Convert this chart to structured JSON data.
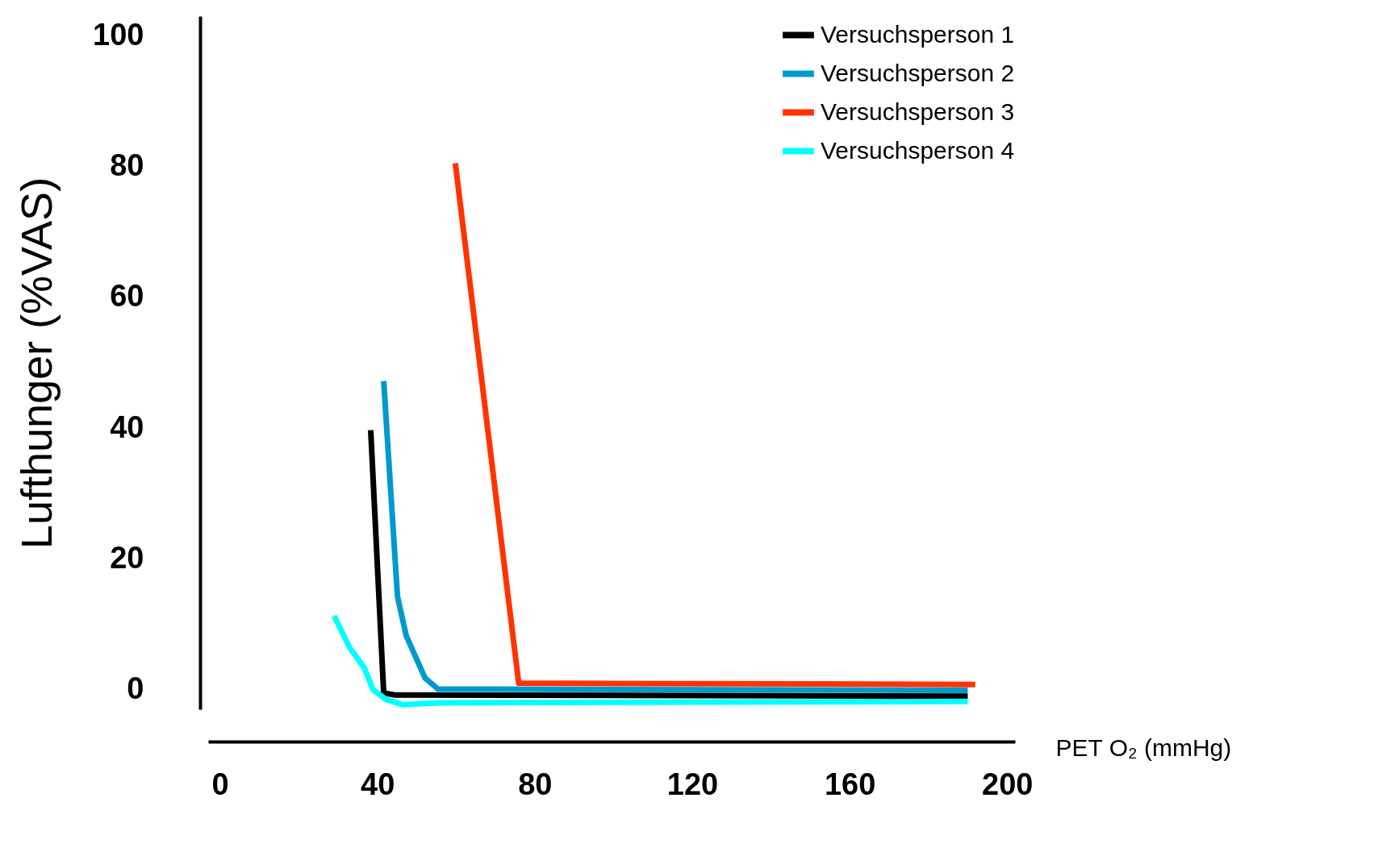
{
  "chart_data": {
    "type": "line",
    "xlabel": "PET O₂ (mmHg)",
    "ylabel": "Lufthunger (%VAS)",
    "xlim": [
      -3,
      202
    ],
    "ylim": [
      -3,
      103
    ],
    "xticks": [
      0,
      40,
      80,
      120,
      160,
      200
    ],
    "yticks": [
      0,
      20,
      40,
      60,
      80,
      100
    ],
    "grid": false,
    "legend": "top right",
    "line_style": "solid",
    "series": [
      {
        "name": "Versuchsperson 1",
        "color": "#000000",
        "x": [
          38.3,
          41.6,
          44.4,
          190
        ],
        "values": [
          39.7,
          -0.5,
          -0.8,
          -1
        ]
      },
      {
        "name": "Versuchsperson 2",
        "color": "#0099cc",
        "x": [
          41.6,
          45.1,
          47.3,
          52.1,
          55.4,
          190
        ],
        "values": [
          47.2,
          14.3,
          8.3,
          1.8,
          0.1,
          -0.1
        ]
      },
      {
        "name": "Versuchsperson 3",
        "color": "#ff3300",
        "x": [
          59.8,
          75.9,
          191.9
        ],
        "values": [
          80.5,
          1,
          0.8
        ]
      },
      {
        "name": "Versuchsperson 4",
        "color": "#00ffff",
        "x": [
          29,
          33,
          36.7,
          38.9,
          42.2,
          46.6,
          55.4,
          190
        ],
        "values": [
          11.3,
          6.4,
          3.3,
          0,
          -1.5,
          -2.3,
          -2,
          -1.8
        ]
      }
    ]
  }
}
